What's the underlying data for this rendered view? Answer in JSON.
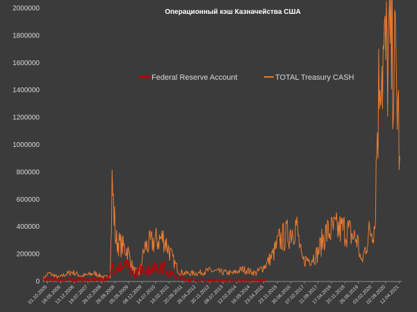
{
  "chart_data": {
    "type": "line",
    "title": "Операционный кэш Казначейства США",
    "ylim": [
      0,
      2000000
    ],
    "y_ticks": [
      0,
      200000,
      400000,
      600000,
      800000,
      1000000,
      1200000,
      1400000,
      1600000,
      1800000,
      2000000
    ],
    "y_tick_labels": [
      "0",
      "200000",
      "400000",
      "600000",
      "800000",
      "1000000",
      "1200000",
      "1400000",
      "1600000",
      "1800000",
      "2000000"
    ],
    "x_tick_labels": [
      "01.10.2005",
      "18.05.2006",
      "13.12.2006",
      "19.07.2007",
      "26.02.2008",
      "26.09.2008",
      "05.05.2009",
      "08.12.2009",
      "14.07.2010",
      "16.02.2011",
      "20.09.2011",
      "26.04.2012",
      "30.11.2012",
      "08.07.2013",
      "12.02.2014",
      "16.09.2014",
      "23.04.2015",
      "23.11.2015",
      "30.06.2016",
      "07.02.2017",
      "11.09.2017",
      "17.04.2018",
      "20.11.2018",
      "26.06.2019",
      "03.02.2020",
      "02.09.2020",
      "12.04.2021"
    ],
    "legend_position": "top-center",
    "grid": false,
    "series": [
      {
        "name": "Federal Reserve Account",
        "color": "#c00000",
        "x": [
          "2005-10",
          "2006-06",
          "2007-06",
          "2008-06",
          "2008-09",
          "2008-10",
          "2009-01",
          "2009-06",
          "2009-09",
          "2010-01",
          "2010-06",
          "2011-01",
          "2011-06",
          "2012-06",
          "2013-06",
          "2014-06",
          "2015-06"
        ],
        "values": [
          10000,
          10000,
          10000,
          10000,
          40000,
          120000,
          100000,
          110000,
          40000,
          90000,
          100000,
          110000,
          40000,
          0,
          0,
          0,
          0
        ]
      },
      {
        "name": "TOTAL Treasury CASH",
        "color": "#ed7d31",
        "x": [
          "2005-10",
          "2006-01",
          "2006-06",
          "2007-01",
          "2007-06",
          "2008-01",
          "2008-06",
          "2008-09",
          "2008-10",
          "2008-12",
          "2009-03",
          "2009-06",
          "2009-09",
          "2009-12",
          "2010-03",
          "2010-06",
          "2010-09",
          "2011-01",
          "2011-06",
          "2011-09",
          "2012-01",
          "2012-06",
          "2013-01",
          "2013-06",
          "2014-01",
          "2014-06",
          "2015-01",
          "2015-06",
          "2015-10",
          "2016-01",
          "2016-06",
          "2016-10",
          "2017-01",
          "2017-06",
          "2017-09",
          "2018-01",
          "2018-06",
          "2018-12",
          "2019-06",
          "2019-08",
          "2019-12",
          "2020-03",
          "2020-04",
          "2020-06",
          "2020-07",
          "2020-10",
          "2021-01",
          "2021-03",
          "2021-04"
        ],
        "values": [
          20000,
          60000,
          30000,
          70000,
          40000,
          60000,
          30000,
          40000,
          700000,
          300000,
          260000,
          230000,
          90000,
          60000,
          250000,
          280000,
          300000,
          320000,
          150000,
          70000,
          60000,
          60000,
          80000,
          70000,
          60000,
          90000,
          60000,
          120000,
          200000,
          300000,
          350000,
          420000,
          150000,
          170000,
          200000,
          350000,
          380000,
          380000,
          300000,
          130000,
          350000,
          420000,
          1000000,
          1750000,
          1600000,
          1650000,
          1650000,
          1300000,
          920000
        ]
      }
    ]
  }
}
